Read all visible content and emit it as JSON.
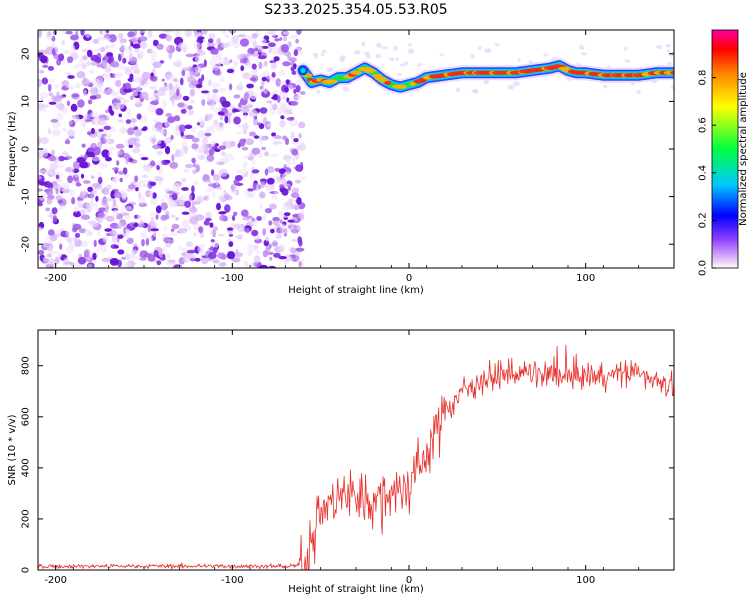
{
  "title": "S233.2025.354.05.53.R05",
  "colors": {
    "snr_line": "#e8302b",
    "spectro_scatter": "#7a2ae0",
    "axis": "#000000",
    "colorbar": [
      "#ff00ff",
      "#8000ff",
      "#0000ff",
      "#00c0ff",
      "#00ff40",
      "#ffff00",
      "#ff8000",
      "#ff0000"
    ]
  },
  "chart_data": [
    {
      "type": "heatmap",
      "name": "spectrogram",
      "xlabel": "Height of straight line (km)",
      "ylabel": "Frequency (Hz)",
      "xlim": [
        -210,
        150
      ],
      "ylim": [
        -25,
        25
      ],
      "xticks": [
        -200,
        -100,
        0,
        100
      ],
      "yticks": [
        20,
        10,
        0,
        -10,
        -20
      ],
      "xtick_labels": [
        "-200",
        "-100",
        "0",
        "100"
      ],
      "ytick_labels": [
        "20",
        "10",
        "0",
        "-10",
        "-20"
      ],
      "noise_region_x": [
        -210,
        -60
      ],
      "signal_track": {
        "x": [
          -60,
          -57,
          -55,
          -50,
          -45,
          -40,
          -35,
          -30,
          -25,
          -20,
          -15,
          -10,
          -5,
          0,
          5,
          10,
          20,
          30,
          40,
          50,
          60,
          70,
          80,
          85,
          90,
          95,
          100,
          110,
          120,
          130,
          140,
          150
        ],
        "y": [
          16.5,
          15,
          14,
          14.5,
          14,
          15,
          15,
          16,
          17,
          16,
          14.5,
          13.5,
          13,
          13.5,
          14,
          15,
          15.5,
          16,
          16,
          16,
          16,
          16.5,
          17,
          17.5,
          16.5,
          16,
          16,
          15.5,
          15.5,
          15.5,
          16,
          16
        ]
      },
      "colorbar": {
        "label": "Normalized spectral amplitude",
        "range": [
          0,
          1
        ],
        "ticks": [
          0.0,
          0.2,
          0.4,
          0.6,
          0.8
        ],
        "tick_labels": [
          "0.0",
          "0.2",
          "0.4",
          "0.6",
          "0.8"
        ]
      }
    },
    {
      "type": "line",
      "name": "snr",
      "xlabel": "Height of straight line (km)",
      "ylabel": "SNR (10 * v/v)",
      "xlim": [
        -210,
        150
      ],
      "ylim": [
        0,
        940
      ],
      "xticks": [
        -200,
        -100,
        0,
        100
      ],
      "yticks": [
        0,
        200,
        400,
        600,
        800
      ],
      "xtick_labels": [
        "-200",
        "-100",
        "0",
        "100"
      ],
      "ytick_labels": [
        "0",
        "200",
        "400",
        "600",
        "800"
      ],
      "series": [
        {
          "name": "SNR",
          "x": [
            -210,
            -65,
            -60,
            -50,
            -40,
            -30,
            -20,
            -10,
            0,
            10,
            20,
            30,
            40,
            50,
            60,
            70,
            80,
            90,
            100,
            110,
            120,
            130,
            140,
            150
          ],
          "values": [
            15,
            15,
            20,
            240,
            280,
            290,
            260,
            300,
            330,
            460,
            620,
            700,
            740,
            760,
            770,
            770,
            760,
            760,
            760,
            760,
            770,
            770,
            750,
            720
          ]
        }
      ]
    }
  ]
}
